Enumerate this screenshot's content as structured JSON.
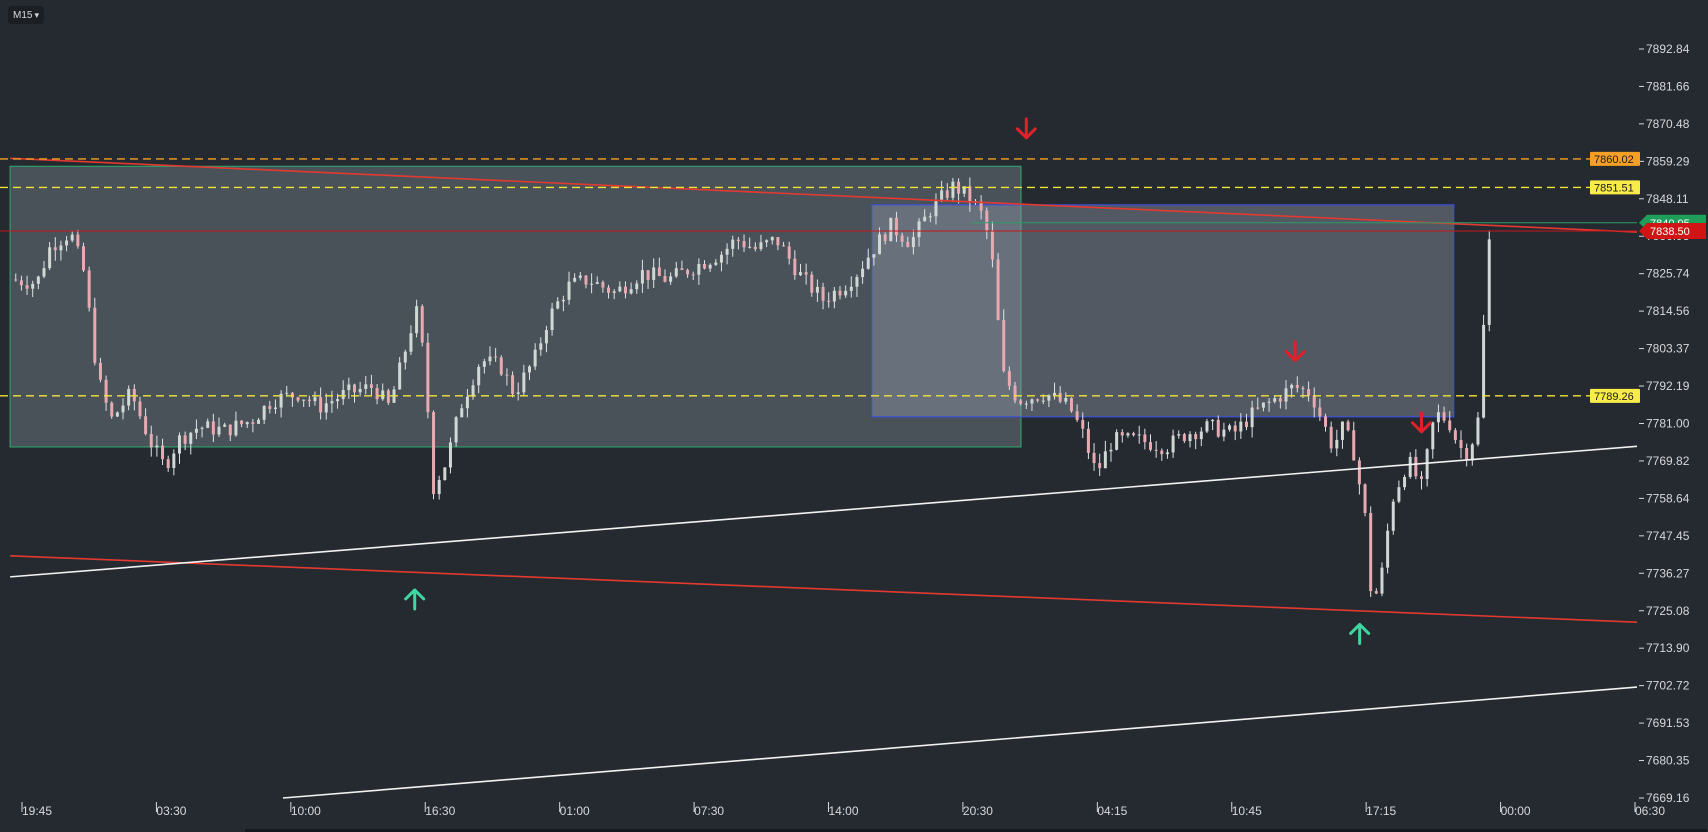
{
  "toolbar": {
    "timeframe": "M15",
    "caret_icon": "chevron-down-icon"
  },
  "chart_data": {
    "type": "candlestick",
    "y_ticks": [
      "7892.84",
      "7881.66",
      "7870.48",
      "7859.29",
      "7848.11",
      "7836.93",
      "7825.74",
      "7814.56",
      "7803.37",
      "7792.19",
      "7781.00",
      "7769.82",
      "7758.64",
      "7747.45",
      "7736.27",
      "7725.08",
      "7713.90",
      "7702.72",
      "7691.53",
      "7680.35",
      "7669.16"
    ],
    "ylim": [
      7669.16,
      7892.84
    ],
    "x_ticks": [
      "19:45",
      "03:30",
      "10:00",
      "16:30",
      "01:00",
      "07:30",
      "14:00",
      "20:30",
      "04:15",
      "10:45",
      "17:15",
      "00:00",
      "06:30"
    ],
    "x_range": [
      0,
      12
    ],
    "colors": {
      "up": "#cfd8d4",
      "down": "#e8a9b1",
      "wick": "#dfe3e6",
      "trend_red": "#e23a31",
      "trend_white": "#f2f2f2",
      "orange_dash": "#f5a025",
      "yellow_dash": "#f1e43a",
      "green_box": "#2f9c6a",
      "blue_box": "#3d4fd8"
    },
    "price_levels": [
      {
        "label": "7860.02",
        "value": 7860.02,
        "style": "orange-dashed",
        "tag_bg": "#f5a025"
      },
      {
        "label": "7851.51",
        "value": 7851.51,
        "style": "yellow-dashed",
        "tag_bg": "#f7ec4a"
      },
      {
        "label": "7789.26",
        "value": 7789.26,
        "style": "yellow-dashed",
        "tag_bg": "#f7ec4a"
      },
      {
        "label": "7840.95",
        "value": 7840.95,
        "style": "green-solid",
        "tag_bg": "#1f9e5a"
      },
      {
        "label": "7838.50",
        "value": 7838.5,
        "style": "red-solid",
        "tag_bg": "#d11515"
      }
    ],
    "trend_lines": [
      {
        "name": "red-upper",
        "color": "red",
        "points": [
          [
            -0.2,
            7860.2
          ],
          [
            12.0,
            7838.0
          ]
        ]
      },
      {
        "name": "red-lower",
        "color": "red",
        "points": [
          [
            -0.2,
            7741.5
          ],
          [
            12.0,
            7721.5
          ]
        ]
      },
      {
        "name": "white-upper",
        "color": "white",
        "points": [
          [
            -0.2,
            7735.2
          ],
          [
            12.0,
            7774.5
          ]
        ]
      },
      {
        "name": "white-lower",
        "color": "white",
        "points": [
          [
            1.83,
            7669.16
          ],
          [
            12.0,
            7702.6
          ]
        ]
      }
    ],
    "zones": [
      {
        "name": "green-zone",
        "x": [
          -0.2,
          7.32
        ],
        "y": [
          7774.0,
          7857.8
        ],
        "fill": "rgba(120,130,140,0.45)",
        "stroke": "#2f9c6a"
      },
      {
        "name": "blue-zone",
        "x": [
          6.21,
          10.54
        ],
        "y": [
          7783.0,
          7846.3
        ],
        "fill": "rgba(150,160,175,0.40)",
        "stroke": "#3d4fd8"
      }
    ],
    "markers": [
      {
        "type": "down",
        "x": 7.36,
        "y": 7869.0,
        "color": "#e0202a"
      },
      {
        "type": "down",
        "x": 9.36,
        "y": 7802.5,
        "color": "#e0202a"
      },
      {
        "type": "down",
        "x": 10.3,
        "y": 7781.2,
        "color": "#e0202a"
      },
      {
        "type": "up",
        "x": 2.81,
        "y": 7728.6,
        "color": "#3fd6a0"
      },
      {
        "type": "up",
        "x": 9.84,
        "y": 7718.3,
        "color": "#3fd6a0"
      }
    ],
    "price_path": [
      [
        -0.2,
        7824
      ],
      [
        0.0,
        7823
      ],
      [
        0.1,
        7834
      ],
      [
        0.25,
        7838
      ],
      [
        0.35,
        7826
      ],
      [
        0.45,
        7795
      ],
      [
        0.55,
        7782
      ],
      [
        0.7,
        7790
      ],
      [
        0.85,
        7775
      ],
      [
        0.95,
        7768
      ],
      [
        1.05,
        7776
      ],
      [
        1.2,
        7780
      ],
      [
        1.4,
        7779
      ],
      [
        1.6,
        7782
      ],
      [
        1.75,
        7788
      ],
      [
        1.95,
        7790
      ],
      [
        2.1,
        7786
      ],
      [
        2.3,
        7790
      ],
      [
        2.5,
        7792
      ],
      [
        2.62,
        7786
      ],
      [
        2.72,
        7800
      ],
      [
        2.82,
        7815
      ],
      [
        2.88,
        7800
      ],
      [
        2.95,
        7762
      ],
      [
        3.05,
        7770
      ],
      [
        3.15,
        7786
      ],
      [
        3.3,
        7800
      ],
      [
        3.45,
        7798
      ],
      [
        3.55,
        7790
      ],
      [
        3.7,
        7800
      ],
      [
        3.8,
        7812
      ],
      [
        3.95,
        7822
      ],
      [
        4.1,
        7824
      ],
      [
        4.3,
        7820
      ],
      [
        4.5,
        7826
      ],
      [
        4.7,
        7824
      ],
      [
        4.9,
        7828
      ],
      [
        5.1,
        7832
      ],
      [
        5.2,
        7836
      ],
      [
        5.35,
        7833
      ],
      [
        5.5,
        7836
      ],
      [
        5.6,
        7830
      ],
      [
        5.7,
        7824
      ],
      [
        5.85,
        7818
      ],
      [
        6.0,
        7822
      ],
      [
        6.1,
        7826
      ],
      [
        6.2,
        7832
      ],
      [
        6.35,
        7840
      ],
      [
        6.5,
        7835
      ],
      [
        6.65,
        7845
      ],
      [
        6.82,
        7852
      ],
      [
        6.95,
        7848
      ],
      [
        7.05,
        7842
      ],
      [
        7.12,
        7826
      ],
      [
        7.18,
        7796
      ],
      [
        7.3,
        7788
      ],
      [
        7.5,
        7790
      ],
      [
        7.68,
        7786
      ],
      [
        7.78,
        7778
      ],
      [
        7.88,
        7766
      ],
      [
        8.0,
        7776
      ],
      [
        8.2,
        7776
      ],
      [
        8.4,
        7774
      ],
      [
        8.55,
        7778
      ],
      [
        8.72,
        7780
      ],
      [
        8.9,
        7778
      ],
      [
        9.05,
        7784
      ],
      [
        9.2,
        7788
      ],
      [
        9.35,
        7792
      ],
      [
        9.48,
        7790
      ],
      [
        9.56,
        7782
      ],
      [
        9.64,
        7774
      ],
      [
        9.72,
        7780
      ],
      [
        9.8,
        7772
      ],
      [
        9.88,
        7753
      ],
      [
        9.93,
        7728
      ],
      [
        9.99,
        7732
      ],
      [
        10.08,
        7758
      ],
      [
        10.2,
        7770
      ],
      [
        10.3,
        7762
      ],
      [
        10.4,
        7784
      ],
      [
        10.5,
        7782
      ],
      [
        10.58,
        7774
      ],
      [
        10.65,
        7772
      ],
      [
        10.72,
        7782
      ],
      [
        10.77,
        7815
      ],
      [
        10.8,
        7835
      ],
      [
        10.84,
        7838.5
      ]
    ]
  }
}
